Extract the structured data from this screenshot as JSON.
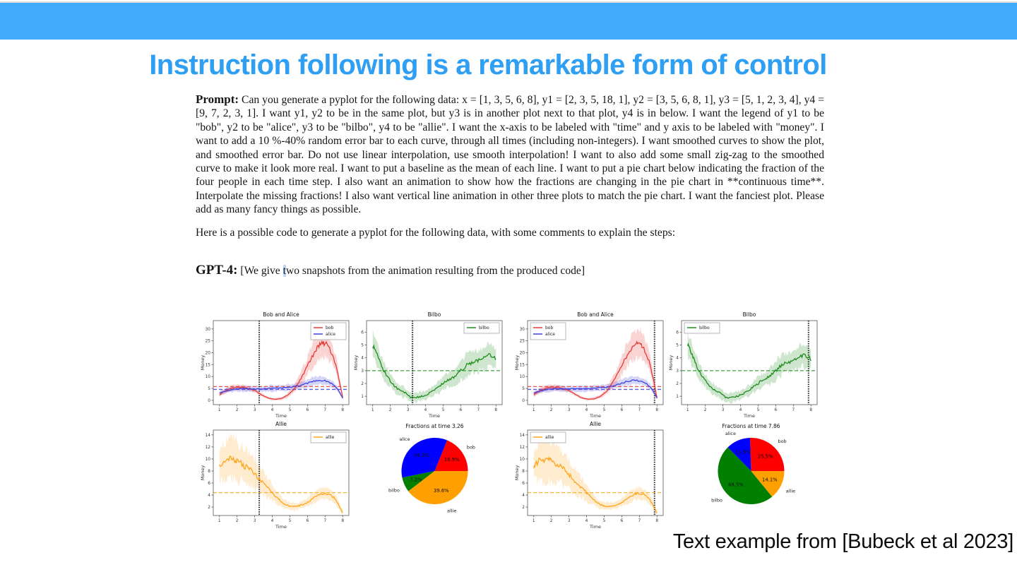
{
  "slide": {
    "top_bar_color": "#41acfb",
    "title": "Instruction following is a remarkable form of control",
    "title_color": "#2e9ff3",
    "attribution": "Text example from [Bubeck et al 2023]"
  },
  "paper": {
    "prompt_label": "Prompt:",
    "prompt_text": "Can you generate a pyplot for the following data: x = [1, 3, 5, 6, 8], y1 = [2, 3, 5, 18, 1], y2 = [3, 5, 6, 8, 1], y3 = [5, 1, 2, 3, 4], y4 = [9, 7, 2, 3, 1]. I want y1, y2 to be in the same plot, but y3 is in another plot next to that plot, y4 is in below. I want the legend of y1 to be \"bob\", y2 to be \"alice\", y3 to be \"bilbo\", y4 to be \"allie\". I want the x-axis to be labeled with \"time\" and y axis to be labeled with \"money\". I want to add a 10 %-40% random error bar to each curve, through all times (including non-integers). I want smoothed curves to show the plot, and smoothed error bar. Do not use linear interpolation, use smooth interpolation! I want to also add some small zig-zag to the smoothed curve to make it look more real. I want to put a baseline as the mean of each line. I want to put a pie chart below indicating the fraction of the four people in each time step. I also want an animation to show how the fractions are changing in the pie chart in **continuous time**. Interpolate the missing fractions! I also want vertical line animation in other three plots to match the pie chart. I want the fanciest plot. Please add as many fancy things as possible.",
    "followup_text": "Here is a possible code to generate a pyplot for the following data, with some comments to explain the steps:",
    "gpt4_label": "GPT-4:",
    "gpt4_note_pre": "[We give ",
    "gpt4_note_hl": "t",
    "gpt4_note_post": "wo snapshots from the animation resulting from the produced code]",
    "selection_color": "#b9dafa"
  },
  "chart_data": [
    {
      "type": "line",
      "title": "Bob and Alice",
      "xlabel": "Time",
      "ylabel": "Money",
      "xlim": [
        0.65,
        8.35
      ],
      "ylim": [
        -1.8,
        33.5
      ],
      "xticks": [
        1,
        2,
        3,
        4,
        5,
        6,
        7,
        8
      ],
      "yticks": [
        0,
        5,
        10,
        15,
        20,
        25,
        30
      ],
      "vline": 3.26,
      "legend_pos": "tr",
      "series": [
        {
          "name": "bob",
          "color": "#e83a38",
          "baseline": 5.8,
          "x": [
            1,
            1.4,
            1.8,
            2.2,
            2.6,
            3.0,
            3.4,
            3.8,
            4.2,
            4.6,
            5.0,
            5.4,
            5.8,
            6.2,
            6.6,
            6.9,
            7.2,
            7.6,
            8.0
          ],
          "y": [
            2.3,
            4.2,
            5.3,
            5.5,
            5.0,
            4.1,
            2.3,
            0.9,
            0.5,
            1.1,
            2.9,
            6.5,
            11.5,
            17.5,
            22.5,
            23.9,
            22.5,
            15.0,
            1.2
          ],
          "err": [
            0.9,
            1.1,
            1.2,
            1.1,
            1.0,
            0.8,
            0.7,
            0.5,
            0.5,
            0.7,
            1.1,
            2.0,
            3.2,
            4.6,
            5.6,
            6.0,
            5.3,
            3.6,
            0.7
          ]
        },
        {
          "name": "alice",
          "color": "#4040dd",
          "baseline": 4.6,
          "x": [
            1,
            1.4,
            1.8,
            2.2,
            2.6,
            3.0,
            3.5,
            4.0,
            4.5,
            5.0,
            5.5,
            6.0,
            6.5,
            7.0,
            7.4,
            7.7,
            8.0
          ],
          "y": [
            3.0,
            4.0,
            4.6,
            4.9,
            4.9,
            4.8,
            4.9,
            5.0,
            5.2,
            5.5,
            6.1,
            7.2,
            8.3,
            8.2,
            6.9,
            4.8,
            0.9
          ],
          "err": [
            0.8,
            1.0,
            1.1,
            1.2,
            1.2,
            1.2,
            1.2,
            1.3,
            1.2,
            1.2,
            1.3,
            1.5,
            1.7,
            1.6,
            1.4,
            1.0,
            0.5
          ]
        }
      ]
    },
    {
      "type": "line",
      "title": "Bilbo",
      "xlabel": "Time",
      "ylabel": "Money",
      "xlim": [
        0.65,
        8.35
      ],
      "ylim": [
        0.35,
        6.9
      ],
      "xticks": [
        1,
        2,
        3,
        4,
        5,
        6,
        7,
        8
      ],
      "yticks": [
        1,
        2,
        3,
        4,
        5,
        6
      ],
      "vline": 3.26,
      "legend_pos": "tr",
      "series": [
        {
          "name": "bilbo",
          "color": "#1e8c1e",
          "baseline": 3.0,
          "x": [
            1,
            1.3,
            1.6,
            2.0,
            2.4,
            2.8,
            3.2,
            3.6,
            4.0,
            4.4,
            4.8,
            5.2,
            5.6,
            6.0,
            6.4,
            6.8,
            7.2,
            7.6,
            8.0
          ],
          "y": [
            5.0,
            4.1,
            3.1,
            2.2,
            1.6,
            1.3,
            0.9,
            0.95,
            1.1,
            1.4,
            1.8,
            2.2,
            2.5,
            3.0,
            3.5,
            3.7,
            3.9,
            4.2,
            3.9
          ],
          "err": [
            0.9,
            0.8,
            0.7,
            0.5,
            0.45,
            0.4,
            0.35,
            0.35,
            0.35,
            0.4,
            0.5,
            0.55,
            0.6,
            0.75,
            0.85,
            0.8,
            0.85,
            0.9,
            0.75
          ]
        }
      ]
    },
    {
      "type": "line",
      "title": "Bob and Alice",
      "xlabel": "Time",
      "ylabel": "Money",
      "xlim": [
        0.65,
        8.35
      ],
      "ylim": [
        -1.8,
        33.5
      ],
      "xticks": [
        1,
        2,
        3,
        4,
        5,
        6,
        7,
        8
      ],
      "yticks": [
        0,
        5,
        10,
        15,
        20,
        25,
        30
      ],
      "vline": 7.86,
      "legend_pos": "tl",
      "series": [
        {
          "name": "bob",
          "color": "#e83a38",
          "baseline": 5.8,
          "x": [
            1,
            1.4,
            1.8,
            2.2,
            2.6,
            3.0,
            3.4,
            3.8,
            4.2,
            4.6,
            5.0,
            5.4,
            5.8,
            6.2,
            6.6,
            6.9,
            7.2,
            7.6,
            8.0
          ],
          "y": [
            2.3,
            4.2,
            5.3,
            5.5,
            5.0,
            4.1,
            2.3,
            0.9,
            0.5,
            1.1,
            2.9,
            6.5,
            11.5,
            17.5,
            22.5,
            23.9,
            22.5,
            15.0,
            1.2
          ],
          "err": [
            0.9,
            1.1,
            1.2,
            1.1,
            1.0,
            0.8,
            0.7,
            0.5,
            0.5,
            0.7,
            1.1,
            2.0,
            3.2,
            4.6,
            5.6,
            6.0,
            5.3,
            3.6,
            0.7
          ]
        },
        {
          "name": "alice",
          "color": "#4040dd",
          "baseline": 4.6,
          "x": [
            1,
            1.4,
            1.8,
            2.2,
            2.6,
            3.0,
            3.5,
            4.0,
            4.5,
            5.0,
            5.5,
            6.0,
            6.5,
            7.0,
            7.4,
            7.7,
            8.0
          ],
          "y": [
            3.0,
            4.0,
            4.6,
            4.9,
            4.9,
            4.8,
            4.9,
            5.0,
            5.2,
            5.5,
            6.1,
            7.2,
            8.3,
            8.2,
            6.9,
            4.8,
            0.9
          ],
          "err": [
            0.8,
            1.0,
            1.1,
            1.2,
            1.2,
            1.2,
            1.2,
            1.3,
            1.2,
            1.2,
            1.3,
            1.5,
            1.7,
            1.6,
            1.4,
            1.0,
            0.5
          ]
        }
      ]
    },
    {
      "type": "line",
      "title": "Bilbo",
      "xlabel": "Time",
      "ylabel": "Money",
      "xlim": [
        0.65,
        8.35
      ],
      "ylim": [
        0.35,
        6.9
      ],
      "xticks": [
        1,
        2,
        3,
        4,
        5,
        6,
        7,
        8
      ],
      "yticks": [
        1,
        2,
        3,
        4,
        5,
        6
      ],
      "vline": 7.86,
      "legend_pos": "tl",
      "series": [
        {
          "name": "bilbo",
          "color": "#1e8c1e",
          "baseline": 3.0,
          "x": [
            1,
            1.3,
            1.6,
            2.0,
            2.4,
            2.8,
            3.2,
            3.6,
            4.0,
            4.4,
            4.8,
            5.2,
            5.6,
            6.0,
            6.4,
            6.8,
            7.2,
            7.6,
            8.0
          ],
          "y": [
            5.0,
            4.1,
            3.1,
            2.2,
            1.6,
            1.3,
            0.9,
            0.95,
            1.1,
            1.4,
            1.8,
            2.2,
            2.5,
            3.0,
            3.5,
            3.7,
            3.9,
            4.2,
            3.9
          ],
          "err": [
            0.9,
            0.8,
            0.7,
            0.5,
            0.45,
            0.4,
            0.35,
            0.35,
            0.35,
            0.4,
            0.5,
            0.55,
            0.6,
            0.75,
            0.85,
            0.8,
            0.85,
            0.9,
            0.75
          ]
        }
      ]
    },
    {
      "type": "line",
      "title": "Allie",
      "xlabel": "Time",
      "ylabel": "Money",
      "xlim": [
        0.65,
        8.35
      ],
      "ylim": [
        0.6,
        14.8
      ],
      "xticks": [
        1,
        2,
        3,
        4,
        5,
        6,
        7,
        8
      ],
      "yticks": [
        2,
        4,
        6,
        8,
        10,
        12,
        14
      ],
      "vline": 3.26,
      "legend_pos": "tr",
      "series": [
        {
          "name": "allie",
          "color": "#ffa51c",
          "baseline": 4.4,
          "x": [
            1,
            1.3,
            1.7,
            2.0,
            2.4,
            2.8,
            3.2,
            3.6,
            4.0,
            4.4,
            4.8,
            5.2,
            5.6,
            6.0,
            6.4,
            6.8,
            7.2,
            7.6,
            8.0
          ],
          "y": [
            8.8,
            9.6,
            10.0,
            9.6,
            8.9,
            8.0,
            6.8,
            5.6,
            4.4,
            3.2,
            2.4,
            2.1,
            2.3,
            2.8,
            3.6,
            4.2,
            4.1,
            3.2,
            1.0
          ],
          "err": [
            2.2,
            3.2,
            3.4,
            3.1,
            2.9,
            2.5,
            2.1,
            1.7,
            1.3,
            0.9,
            0.7,
            0.65,
            0.6,
            0.7,
            0.9,
            1.0,
            0.85,
            0.75,
            0.4
          ]
        }
      ]
    },
    {
      "type": "pie",
      "title": "Fractions at time 3.26",
      "labels": [
        "bob",
        "alice",
        "bilbo",
        "allie"
      ],
      "values": [
        18.9,
        34.3,
        7.2,
        39.6
      ],
      "colors": [
        "#fe0000",
        "#0000fe",
        "#007f00",
        "#ff9f00"
      ],
      "start_angle": 0,
      "direction": "ccw"
    },
    {
      "type": "line",
      "title": "Allie",
      "xlabel": "Time",
      "ylabel": "Money",
      "xlim": [
        0.65,
        8.35
      ],
      "ylim": [
        0.6,
        14.8
      ],
      "xticks": [
        1,
        2,
        3,
        4,
        5,
        6,
        7,
        8
      ],
      "yticks": [
        2,
        4,
        6,
        8,
        10,
        12,
        14
      ],
      "vline": 7.86,
      "legend_pos": "tl",
      "series": [
        {
          "name": "allie",
          "color": "#ffa51c",
          "baseline": 4.4,
          "x": [
            1,
            1.3,
            1.7,
            2.0,
            2.4,
            2.8,
            3.2,
            3.6,
            4.0,
            4.4,
            4.8,
            5.2,
            5.6,
            6.0,
            6.4,
            6.8,
            7.2,
            7.6,
            8.0
          ],
          "y": [
            8.8,
            9.6,
            10.0,
            9.6,
            8.9,
            8.0,
            6.8,
            5.6,
            4.4,
            3.2,
            2.4,
            2.1,
            2.3,
            2.8,
            3.6,
            4.2,
            4.1,
            3.2,
            1.0
          ],
          "err": [
            2.2,
            3.2,
            3.4,
            3.1,
            2.9,
            2.5,
            2.1,
            1.7,
            1.3,
            0.9,
            0.7,
            0.65,
            0.6,
            0.7,
            0.9,
            1.0,
            0.85,
            0.75,
            0.4
          ]
        }
      ]
    },
    {
      "type": "pie",
      "title": "Fractions at time 7.86",
      "labels": [
        "bob",
        "alice",
        "bilbo",
        "allie"
      ],
      "values": [
        25.5,
        11.9,
        48.5,
        14.1
      ],
      "colors": [
        "#fe0000",
        "#0000fe",
        "#007f00",
        "#ff9f00"
      ],
      "start_angle": 0,
      "direction": "ccw"
    }
  ]
}
